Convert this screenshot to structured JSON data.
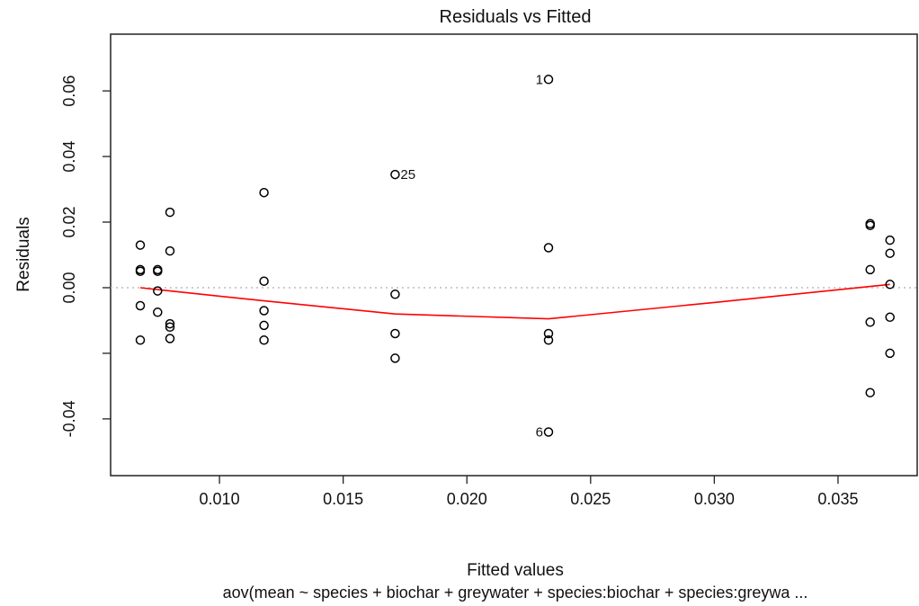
{
  "chart_data": {
    "type": "scatter",
    "title": "Residuals vs Fitted",
    "xlabel": "Fitted values",
    "ylabel": "Residuals",
    "caption": "aov(mean ~ species + biochar + greywater + species:biochar + species:greywa ...",
    "xlim": [
      0.0056,
      0.0382
    ],
    "ylim": [
      -0.0573,
      0.0773
    ],
    "x_ticks": [
      {
        "value": 0.01,
        "label": "0.010"
      },
      {
        "value": 0.015,
        "label": "0.015"
      },
      {
        "value": 0.02,
        "label": "0.020"
      },
      {
        "value": 0.025,
        "label": "0.025"
      },
      {
        "value": 0.03,
        "label": "0.030"
      },
      {
        "value": 0.035,
        "label": "0.035"
      }
    ],
    "y_ticks": [
      {
        "value": -0.04,
        "label": "-0.04"
      },
      {
        "value": -0.02,
        "label": ""
      },
      {
        "value": 0.0,
        "label": "0.00"
      },
      {
        "value": 0.02,
        "label": "0.02"
      },
      {
        "value": 0.04,
        "label": "0.04"
      },
      {
        "value": 0.06,
        "label": "0.06"
      }
    ],
    "reference_line": {
      "y": 0,
      "style": "dotted",
      "color": "#bbbbbb"
    },
    "points": [
      {
        "x": 0.0068,
        "y": 0.013
      },
      {
        "x": 0.0068,
        "y": 0.0055
      },
      {
        "x": 0.0068,
        "y": 0.005
      },
      {
        "x": 0.0068,
        "y": -0.0055
      },
      {
        "x": 0.0068,
        "y": -0.016
      },
      {
        "x": 0.0075,
        "y": 0.0055
      },
      {
        "x": 0.0075,
        "y": 0.005
      },
      {
        "x": 0.0075,
        "y": -0.001
      },
      {
        "x": 0.0075,
        "y": -0.0075
      },
      {
        "x": 0.008,
        "y": 0.023
      },
      {
        "x": 0.008,
        "y": 0.0112
      },
      {
        "x": 0.008,
        "y": -0.011
      },
      {
        "x": 0.008,
        "y": -0.012
      },
      {
        "x": 0.008,
        "y": -0.0155
      },
      {
        "x": 0.0118,
        "y": 0.029
      },
      {
        "x": 0.0118,
        "y": 0.002
      },
      {
        "x": 0.0118,
        "y": -0.007
      },
      {
        "x": 0.0118,
        "y": -0.0115
      },
      {
        "x": 0.0118,
        "y": -0.016
      },
      {
        "x": 0.0171,
        "y": 0.0345,
        "label": "25"
      },
      {
        "x": 0.0171,
        "y": -0.002
      },
      {
        "x": 0.0171,
        "y": -0.014
      },
      {
        "x": 0.0171,
        "y": -0.0215
      },
      {
        "x": 0.0233,
        "y": 0.0635,
        "label": "1"
      },
      {
        "x": 0.0233,
        "y": 0.0122
      },
      {
        "x": 0.0233,
        "y": -0.014
      },
      {
        "x": 0.0233,
        "y": -0.016
      },
      {
        "x": 0.0233,
        "y": -0.044,
        "label": "6"
      },
      {
        "x": 0.0363,
        "y": 0.0195
      },
      {
        "x": 0.0363,
        "y": 0.019
      },
      {
        "x": 0.0363,
        "y": 0.0055
      },
      {
        "x": 0.0363,
        "y": -0.0105
      },
      {
        "x": 0.0363,
        "y": -0.032
      },
      {
        "x": 0.0371,
        "y": 0.0145
      },
      {
        "x": 0.0371,
        "y": 0.0105
      },
      {
        "x": 0.0371,
        "y": 0.001
      },
      {
        "x": 0.0371,
        "y": -0.009
      },
      {
        "x": 0.0371,
        "y": -0.02
      }
    ],
    "smoother": {
      "color": "#ff0000",
      "x": [
        0.0068,
        0.008,
        0.0118,
        0.0171,
        0.0233,
        0.03,
        0.0371
      ],
      "y": [
        0.0,
        -0.001,
        -0.004,
        -0.008,
        -0.0095,
        -0.0045,
        0.001
      ]
    },
    "point_color": "#000000",
    "grid": false
  }
}
